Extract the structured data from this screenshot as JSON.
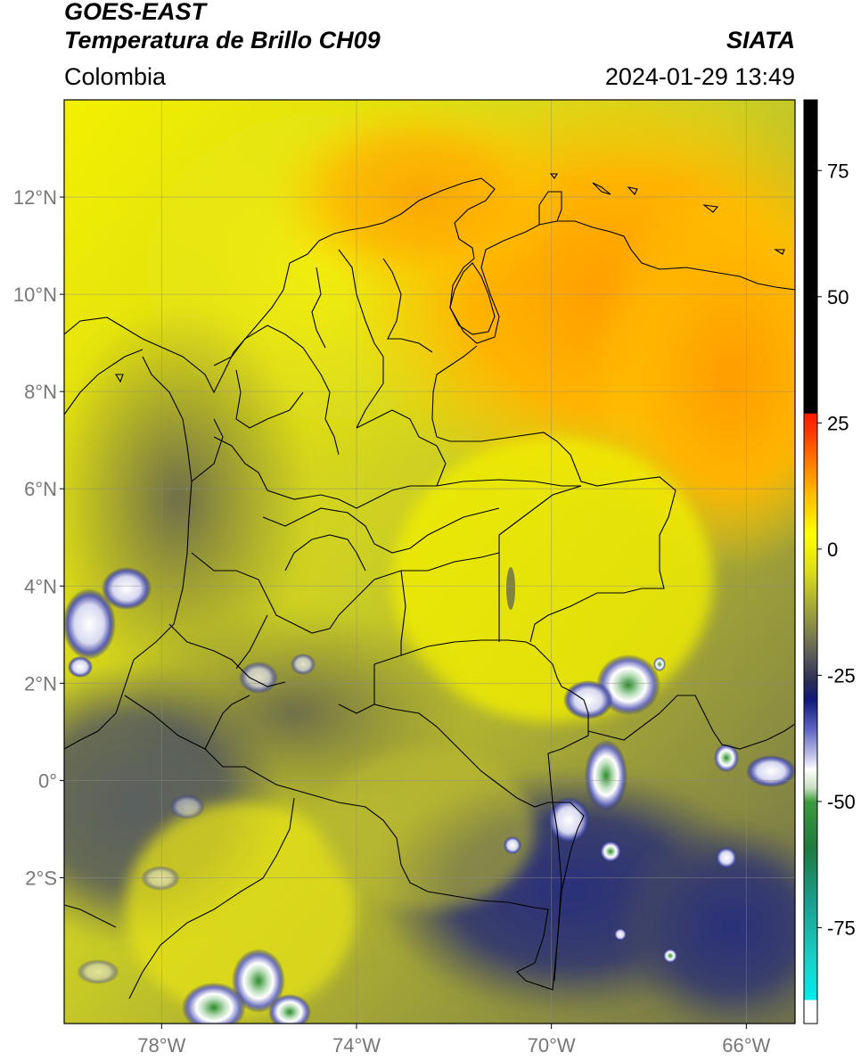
{
  "header": {
    "satellite": "GOES-EAST",
    "product": "Temperatura de Brillo CH09",
    "region": "Colombia",
    "agency": "SIATA",
    "datetime": "2024-01-29 13:49"
  },
  "map": {
    "lon_range": [
      -80,
      -65
    ],
    "lat_range": [
      -5,
      14
    ],
    "lat_ticks": [
      {
        "value": 12,
        "label": "12°N"
      },
      {
        "value": 10,
        "label": "10°N"
      },
      {
        "value": 8,
        "label": "8°N"
      },
      {
        "value": 6,
        "label": "6°N"
      },
      {
        "value": 4,
        "label": "4°N"
      },
      {
        "value": 2,
        "label": "2°N"
      },
      {
        "value": 0,
        "label": "0°"
      },
      {
        "value": -2,
        "label": "2°S"
      }
    ],
    "lon_ticks": [
      {
        "value": -78,
        "label": "78°W"
      },
      {
        "value": -74,
        "label": "74°W"
      },
      {
        "value": -70,
        "label": "70°W"
      },
      {
        "value": -66,
        "label": "66°W"
      }
    ]
  },
  "colorbar": {
    "range": [
      -94,
      89
    ],
    "ticks": [
      {
        "value": 75,
        "label": "75"
      },
      {
        "value": 50,
        "label": "50"
      },
      {
        "value": 25,
        "label": "25"
      },
      {
        "value": 0,
        "label": "0"
      },
      {
        "value": -25,
        "label": "-25"
      },
      {
        "value": -50,
        "label": "-50"
      },
      {
        "value": -75,
        "label": "-75"
      }
    ],
    "colors": {
      "black_above": "#000000",
      "red": "#ff1a00",
      "orange": "#ff9a00",
      "yellow": "#ffff00",
      "olive": "#a3a63a",
      "gray": "#55565a",
      "navy": "#101a7a",
      "white": "#ffffff",
      "green": "#2a8a2a",
      "teal": "#19c9a6",
      "cyan": "#00f0f0"
    }
  }
}
